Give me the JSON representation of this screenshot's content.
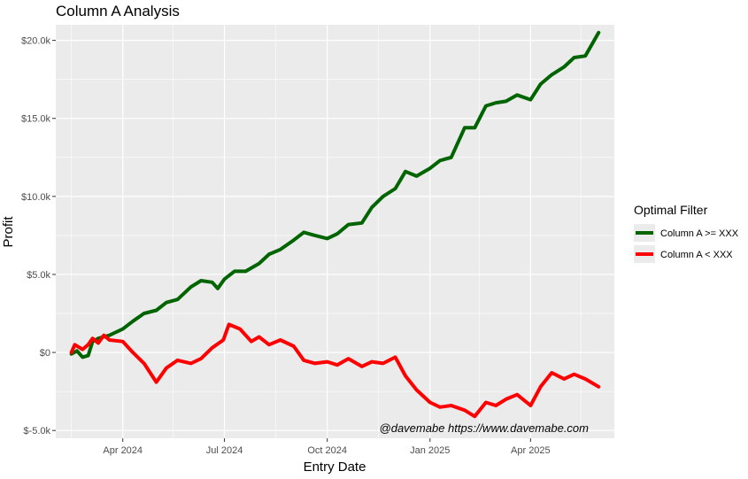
{
  "chart_data": {
    "type": "line",
    "title": "Column A Analysis",
    "xlabel": "Entry Date",
    "ylabel": "Profit",
    "x_ticks": [
      "Apr 2024",
      "Jul 2024",
      "Oct 2024",
      "Jan 2025",
      "Apr 2025"
    ],
    "y_ticks": [
      "$-5.0k",
      "$0",
      "$5.0k",
      "$10.0k",
      "$15.0k",
      "$20.0k"
    ],
    "y_tick_values": [
      -5000,
      0,
      5000,
      10000,
      15000,
      20000
    ],
    "ylim": [
      -5500,
      21000
    ],
    "xlim": [
      "2024-02-01",
      "2025-06-15"
    ],
    "grid": true,
    "legend": {
      "title": "Optimal Filter",
      "placement": "right"
    },
    "annotation": "@davemabe https://www.davemabe.com",
    "series": [
      {
        "name": "Column A >= XXX",
        "color": "#006400",
        "points": [
          [
            "2024-02-15",
            -100
          ],
          [
            "2024-02-20",
            100
          ],
          [
            "2024-02-25",
            -300
          ],
          [
            "2024-03-01",
            -200
          ],
          [
            "2024-03-05",
            700
          ],
          [
            "2024-03-10",
            900
          ],
          [
            "2024-03-20",
            1100
          ],
          [
            "2024-04-01",
            1500
          ],
          [
            "2024-04-10",
            2000
          ],
          [
            "2024-04-20",
            2500
          ],
          [
            "2024-05-01",
            2700
          ],
          [
            "2024-05-10",
            3200
          ],
          [
            "2024-05-20",
            3400
          ],
          [
            "2024-06-01",
            4200
          ],
          [
            "2024-06-10",
            4600
          ],
          [
            "2024-06-20",
            4500
          ],
          [
            "2024-06-25",
            4100
          ],
          [
            "2024-07-01",
            4700
          ],
          [
            "2024-07-10",
            5200
          ],
          [
            "2024-07-20",
            5200
          ],
          [
            "2024-08-01",
            5700
          ],
          [
            "2024-08-10",
            6300
          ],
          [
            "2024-08-20",
            6600
          ],
          [
            "2024-09-01",
            7200
          ],
          [
            "2024-09-10",
            7700
          ],
          [
            "2024-09-20",
            7500
          ],
          [
            "2024-10-01",
            7300
          ],
          [
            "2024-10-10",
            7600
          ],
          [
            "2024-10-20",
            8200
          ],
          [
            "2024-11-01",
            8300
          ],
          [
            "2024-11-10",
            9300
          ],
          [
            "2024-11-20",
            10000
          ],
          [
            "2024-12-01",
            10500
          ],
          [
            "2024-12-10",
            11600
          ],
          [
            "2024-12-20",
            11300
          ],
          [
            "2025-01-01",
            11800
          ],
          [
            "2025-01-10",
            12300
          ],
          [
            "2025-01-20",
            12500
          ],
          [
            "2025-02-01",
            14400
          ],
          [
            "2025-02-10",
            14400
          ],
          [
            "2025-02-20",
            15800
          ],
          [
            "2025-03-01",
            16000
          ],
          [
            "2025-03-10",
            16100
          ],
          [
            "2025-03-20",
            16500
          ],
          [
            "2025-04-01",
            16200
          ],
          [
            "2025-04-10",
            17200
          ],
          [
            "2025-04-20",
            17800
          ],
          [
            "2025-05-01",
            18300
          ],
          [
            "2025-05-10",
            18900
          ],
          [
            "2025-05-20",
            19000
          ],
          [
            "2025-06-01",
            20500
          ]
        ]
      },
      {
        "name": "Column A < XXX",
        "color": "#ff0000",
        "points": [
          [
            "2024-02-15",
            0
          ],
          [
            "2024-02-18",
            500
          ],
          [
            "2024-02-25",
            200
          ],
          [
            "2024-03-01",
            500
          ],
          [
            "2024-03-05",
            900
          ],
          [
            "2024-03-10",
            600
          ],
          [
            "2024-03-15",
            1100
          ],
          [
            "2024-03-20",
            800
          ],
          [
            "2024-04-01",
            700
          ],
          [
            "2024-04-10",
            0
          ],
          [
            "2024-04-20",
            -700
          ],
          [
            "2024-05-01",
            -1900
          ],
          [
            "2024-05-10",
            -1000
          ],
          [
            "2024-05-20",
            -500
          ],
          [
            "2024-06-01",
            -700
          ],
          [
            "2024-06-10",
            -400
          ],
          [
            "2024-06-20",
            300
          ],
          [
            "2024-06-30",
            800
          ],
          [
            "2024-07-05",
            1800
          ],
          [
            "2024-07-15",
            1500
          ],
          [
            "2024-07-25",
            700
          ],
          [
            "2024-08-01",
            1000
          ],
          [
            "2024-08-10",
            500
          ],
          [
            "2024-08-20",
            800
          ],
          [
            "2024-09-01",
            400
          ],
          [
            "2024-09-10",
            -500
          ],
          [
            "2024-09-20",
            -700
          ],
          [
            "2024-10-01",
            -600
          ],
          [
            "2024-10-10",
            -800
          ],
          [
            "2024-10-20",
            -400
          ],
          [
            "2024-11-01",
            -900
          ],
          [
            "2024-11-10",
            -600
          ],
          [
            "2024-11-20",
            -700
          ],
          [
            "2024-12-01",
            -300
          ],
          [
            "2024-12-10",
            -1500
          ],
          [
            "2024-12-20",
            -2400
          ],
          [
            "2025-01-01",
            -3200
          ],
          [
            "2025-01-10",
            -3500
          ],
          [
            "2025-01-20",
            -3400
          ],
          [
            "2025-02-01",
            -3700
          ],
          [
            "2025-02-10",
            -4100
          ],
          [
            "2025-02-20",
            -3200
          ],
          [
            "2025-03-01",
            -3400
          ],
          [
            "2025-03-10",
            -3000
          ],
          [
            "2025-03-20",
            -2700
          ],
          [
            "2025-04-01",
            -3400
          ],
          [
            "2025-04-10",
            -2200
          ],
          [
            "2025-04-20",
            -1300
          ],
          [
            "2025-05-01",
            -1700
          ],
          [
            "2025-05-10",
            -1400
          ],
          [
            "2025-05-20",
            -1700
          ],
          [
            "2025-06-01",
            -2200
          ]
        ]
      }
    ]
  }
}
